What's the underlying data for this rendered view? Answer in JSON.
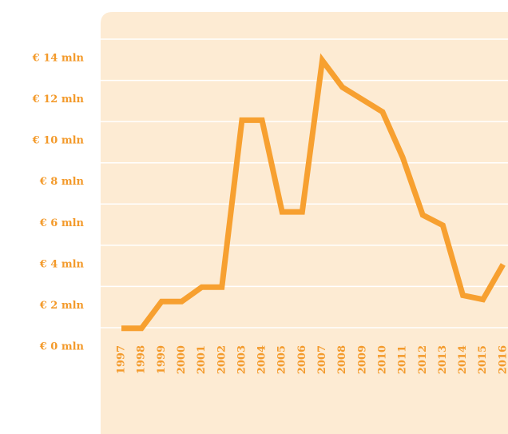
{
  "chart_data": {
    "type": "line",
    "categories": [
      "1997",
      "1998",
      "1999",
      "2000",
      "2001",
      "2002",
      "2003",
      "2004",
      "2005",
      "2006",
      "2007",
      "2008",
      "2009",
      "2010",
      "2011",
      "2012",
      "2013",
      "2014",
      "2015",
      "2016"
    ],
    "series": [
      {
        "color": "#f7a030",
        "values": [
          0.9,
          0.9,
          2.2,
          2.2,
          2.9,
          2.9,
          11.0,
          11.0,
          6.55,
          6.55,
          13.9,
          12.6,
          12.0,
          11.4,
          9.2,
          6.4,
          5.9,
          2.5,
          2.3,
          4.0
        ]
      }
    ],
    "ylim": [
      0,
      14
    ],
    "yticks": [
      {
        "value": 0,
        "label": "€ 0 mln"
      },
      {
        "value": 2,
        "label": "€ 2 mln"
      },
      {
        "value": 4,
        "label": "€ 4 mln"
      },
      {
        "value": 6,
        "label": "€ 6 mln"
      },
      {
        "value": 8,
        "label": "€ 8 mln"
      },
      {
        "value": 10,
        "label": "€ 10 mln"
      },
      {
        "value": 12,
        "label": "€ 12 mln"
      },
      {
        "value": 14,
        "label": "€ 14 mln"
      }
    ],
    "grid": true
  }
}
